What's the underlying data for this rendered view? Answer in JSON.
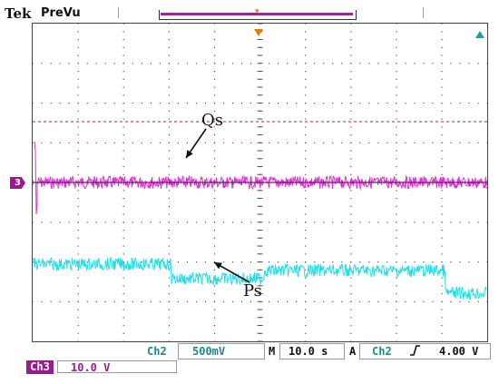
{
  "header": {
    "brand": "Tek",
    "mode": "PreVu"
  },
  "annotations": {
    "qs": "Qs",
    "ps": "Ps"
  },
  "markers": {
    "channel_marker": "3"
  },
  "status": {
    "ch2_label": "Ch2",
    "ch2_scale": "500mV",
    "m_label": "M",
    "timebase": "10.0 s",
    "a_label": "A",
    "trigger_source": "Ch2",
    "trigger_slope_icon": "rising-edge-icon",
    "trigger_level": "4.00 V"
  },
  "channel3": {
    "label": "Ch3",
    "scale": "10.0 V"
  },
  "colors": {
    "ch2_trace": "#22e0e8",
    "ch3_trace": "#e030d8",
    "ch3_badge": "#9a1a8f",
    "ref_line": "#a0206a",
    "trigger": "#e08000",
    "status_text": "#1a8a8a"
  }
}
